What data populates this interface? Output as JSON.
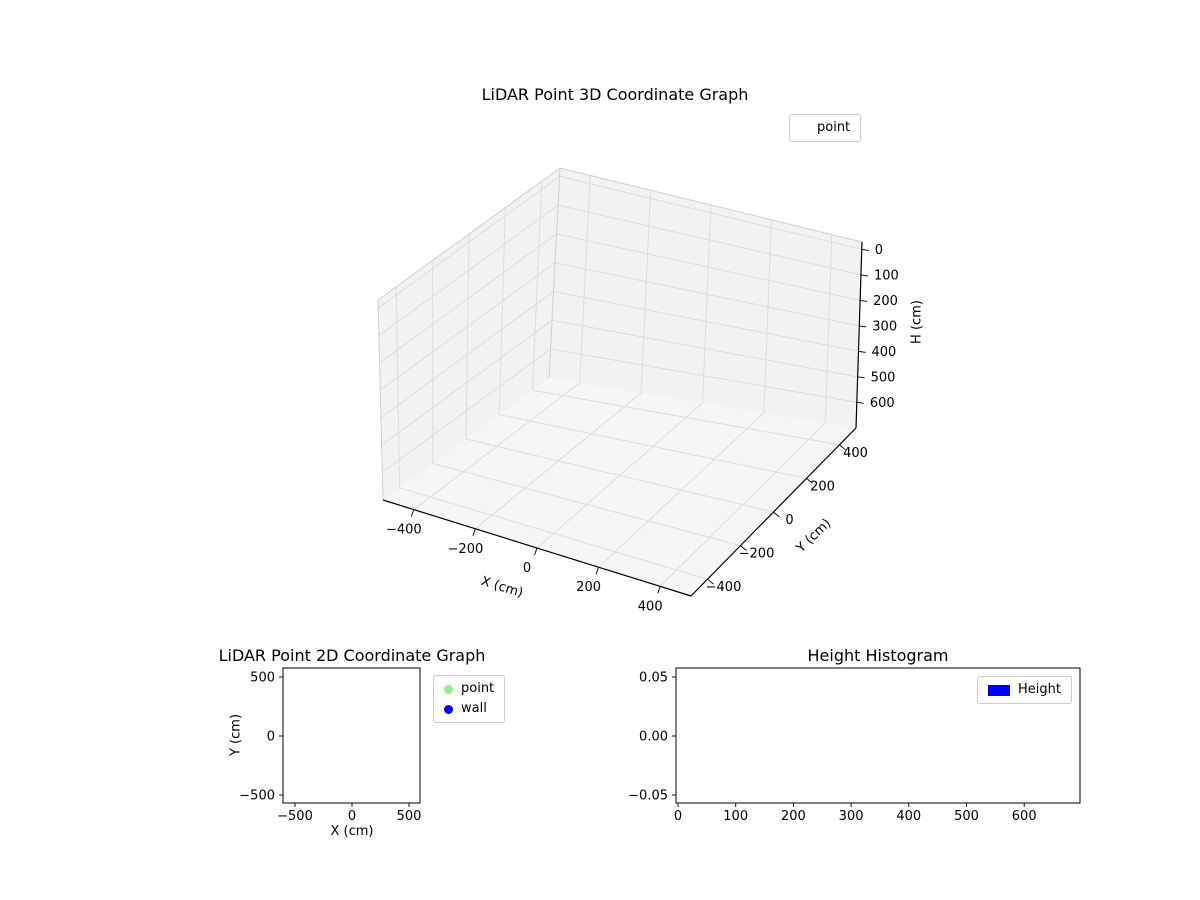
{
  "figure": {
    "background": "#ffffff",
    "text_color": "#000000"
  },
  "chart_data": [
    {
      "id": "plot3d",
      "type": "scatter3d",
      "title": "LiDAR Point 3D Coordinate Graph",
      "xlabel": "X (cm)",
      "ylabel": "Y (cm)",
      "zlabel": "H (cm)",
      "xticks": [
        "−400",
        "−200",
        "0",
        "200",
        "400"
      ],
      "yticks": [
        "−400",
        "−200",
        "0",
        "200",
        "400"
      ],
      "zticks": [
        "0",
        "100",
        "200",
        "300",
        "400",
        "500",
        "600"
      ],
      "xlim": [
        -500,
        500
      ],
      "ylim": [
        -500,
        500
      ],
      "zlim": [
        0,
        650
      ],
      "zaxis_inverted": true,
      "grid": true,
      "pane_color": "#f2f2f2",
      "legend": {
        "position": "upper right",
        "entries": [
          {
            "label": "point",
            "marker": "circle",
            "color": "#ffffff"
          }
        ]
      },
      "series": [
        {
          "name": "point",
          "points": []
        }
      ]
    },
    {
      "id": "plot2d",
      "type": "scatter",
      "title": "LiDAR Point 2D Coordinate Graph",
      "xlabel": "X (cm)",
      "ylabel": "Y (cm)",
      "xticks": [
        "−500",
        "0",
        "500"
      ],
      "yticks": [
        "500",
        "0",
        "−500"
      ],
      "xlim": [
        -600,
        600
      ],
      "ylim": [
        -580,
        580
      ],
      "grid": false,
      "legend": {
        "position": "outside upper right",
        "entries": [
          {
            "label": "point",
            "marker": "circle",
            "color": "#90ee90"
          },
          {
            "label": "wall",
            "marker": "circle",
            "color": "#0000ff"
          }
        ]
      },
      "series": [
        {
          "name": "point",
          "points": []
        },
        {
          "name": "wall",
          "points": []
        }
      ]
    },
    {
      "id": "hist",
      "type": "bar",
      "title": "Height Histogram",
      "xlabel": "",
      "ylabel": "",
      "xticks": [
        "0",
        "100",
        "200",
        "300",
        "400",
        "500",
        "600"
      ],
      "yticks": [
        "0.05",
        "0.00",
        "−0.05"
      ],
      "xlim": [
        -3,
        697
      ],
      "ylim": [
        -0.057,
        0.057
      ],
      "grid": false,
      "legend": {
        "position": "upper right",
        "entries": [
          {
            "label": "Height",
            "marker": "rect",
            "color": "#0000ff"
          }
        ]
      },
      "values": []
    }
  ]
}
